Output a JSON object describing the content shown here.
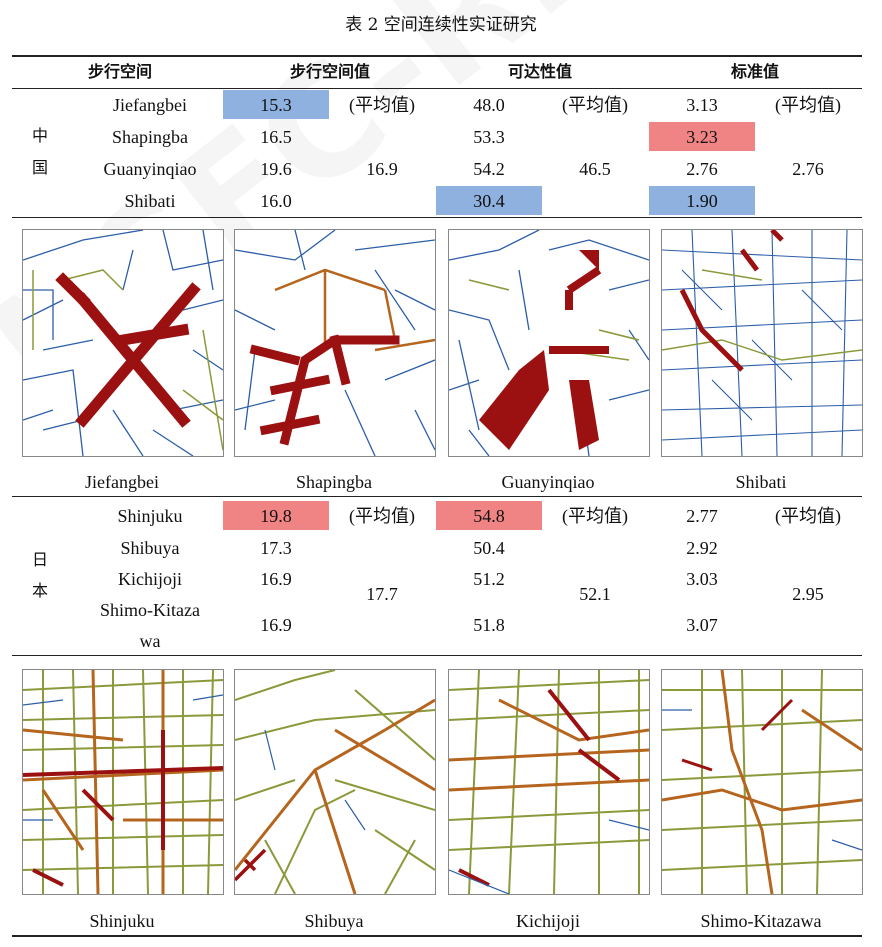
{
  "caption": "表 2  空间连续性实证研究",
  "watermark": "NSFC-REPORT-2021",
  "headers": {
    "space": "步行空间",
    "value": "步行空间值",
    "access": "可达性值",
    "std": "标准值"
  },
  "avg_note": "(平均值)",
  "china": {
    "region": [
      "中",
      "国"
    ],
    "rows": [
      {
        "name": "Jiefangbei",
        "value": "15.3",
        "access": "48.0",
        "std": "3.13"
      },
      {
        "name": "Shapingba",
        "value": "16.5",
        "access": "53.3",
        "std": "3.23"
      },
      {
        "name": "Guanyinqiao",
        "value": "19.6",
        "access": "54.2",
        "std": "2.76"
      },
      {
        "name": "Shibati",
        "value": "16.0",
        "access": "30.4",
        "std": "1.90"
      }
    ],
    "avg": {
      "value": "16.9",
      "access": "46.5",
      "std": "2.76"
    },
    "map_labels": [
      "Jiefangbei",
      "Shapingba",
      "Guanyinqiao",
      "Shibati"
    ]
  },
  "japan": {
    "region": [
      "日",
      "本"
    ],
    "rows": [
      {
        "name": "Shinjuku",
        "value": "19.8",
        "access": "54.8",
        "std": "2.77"
      },
      {
        "name": "Shibuya",
        "value": "17.3",
        "access": "50.4",
        "std": "2.92"
      },
      {
        "name": "Kichijoji",
        "value": "16.9",
        "access": "51.2",
        "std": "3.03"
      },
      {
        "name_line1": "Shimo-Kitaza",
        "name_line2": "wa",
        "value": "16.9",
        "access": "51.8",
        "std": "3.07"
      }
    ],
    "avg": {
      "value": "17.7",
      "access": "52.1",
      "std": "2.95"
    },
    "map_labels": [
      "Shinjuku",
      "Shibuya",
      "Kichijoji",
      "Shimo-Kitazawa"
    ]
  },
  "colors": {
    "highlight_low": "#8eb1e0",
    "highlight_high": "#f08484",
    "street_hot": "#9b1111",
    "street_warm": "#b5651d",
    "street_mid": "#8a9a3a",
    "street_cool": "#2c5ea8"
  }
}
